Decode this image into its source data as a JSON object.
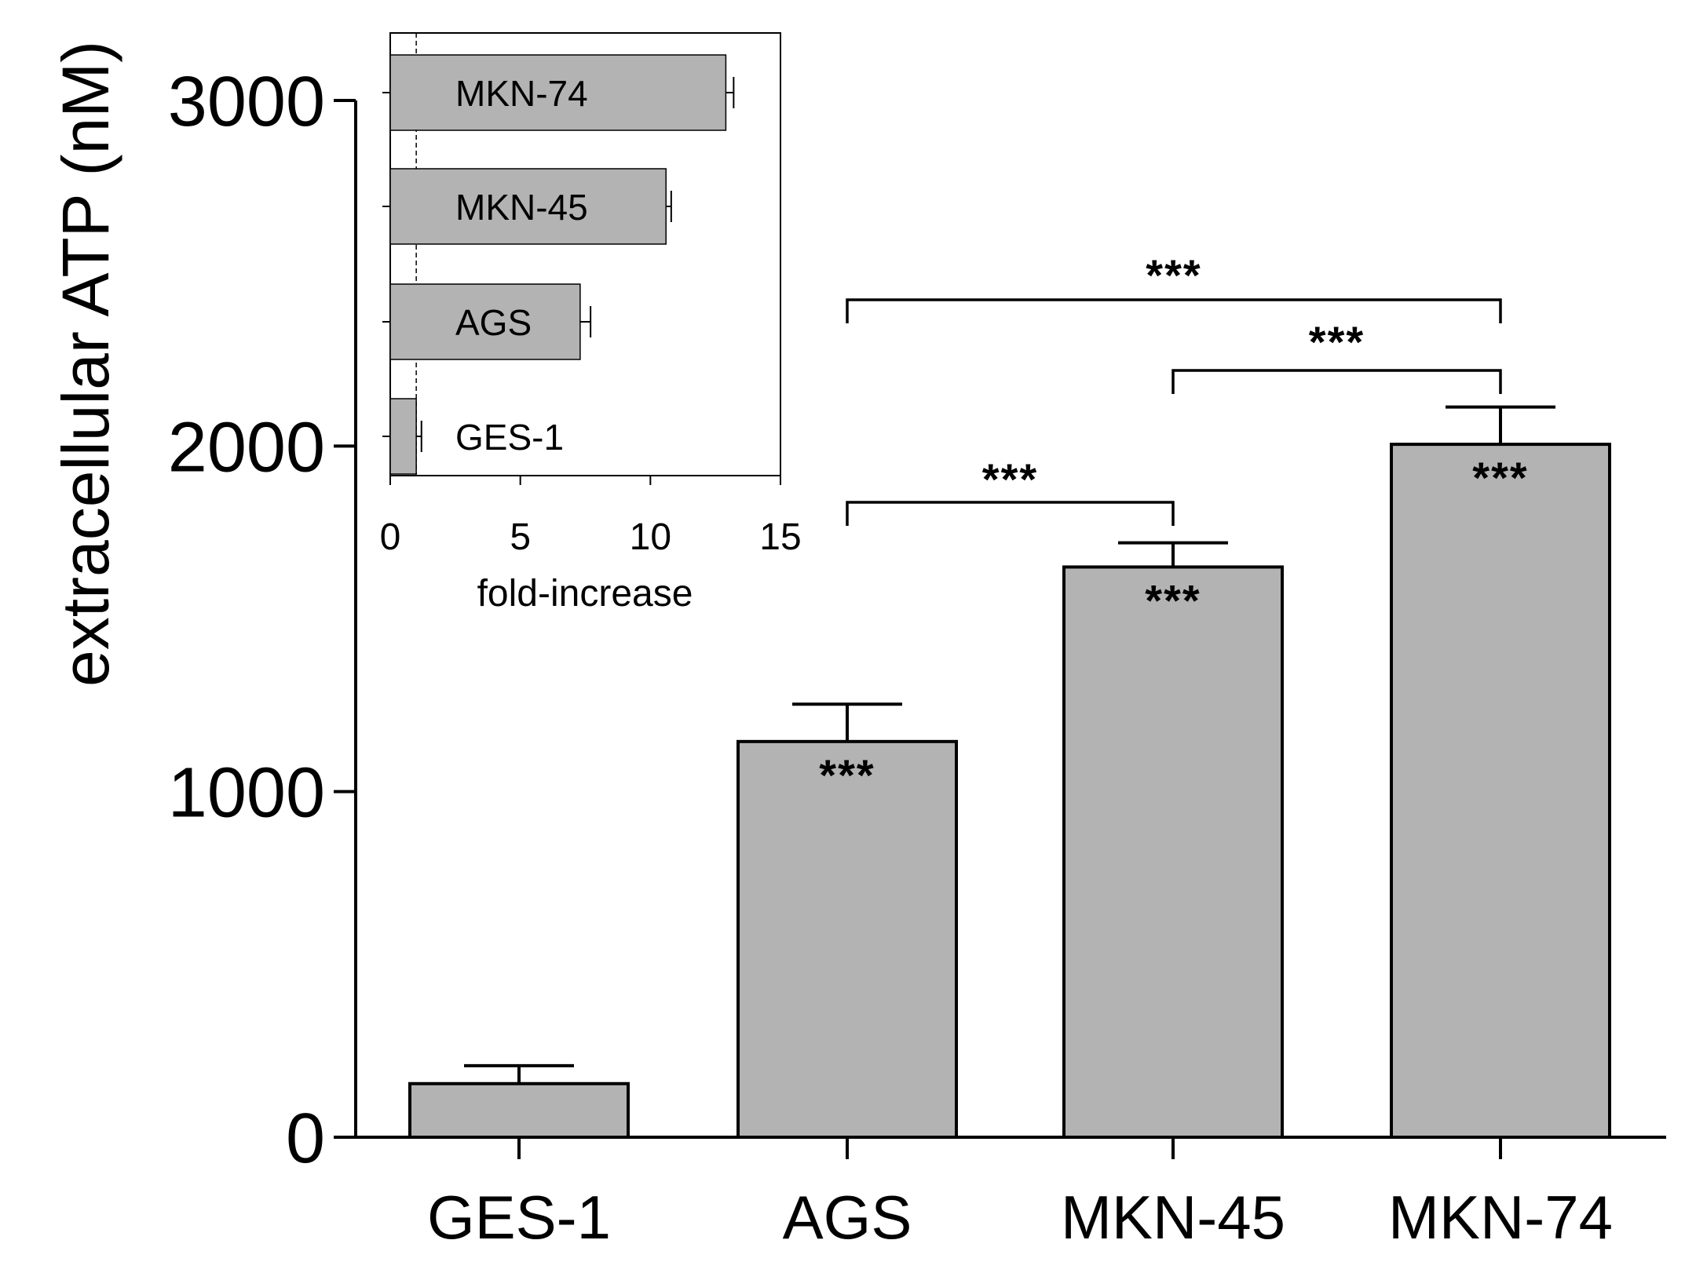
{
  "chart_data": [
    {
      "type": "bar",
      "ylabel": "extracellular ATP (nM)",
      "xlabel": "",
      "categories": [
        "GES-1",
        "AGS",
        "MKN-45",
        "MKN-74"
      ],
      "values": [
        155,
        1145,
        1650,
        2005
      ],
      "errors": [
        52,
        108,
        70,
        108
      ],
      "ylim": [
        0,
        3000
      ],
      "yticks": [
        0,
        1000,
        2000,
        3000
      ],
      "bar_annotations": [
        "",
        "***",
        "***",
        "***"
      ],
      "comparisons": [
        {
          "from": "AGS",
          "to": "MKN-45",
          "label": "***"
        },
        {
          "from": "AGS",
          "to": "MKN-74",
          "label": "***"
        },
        {
          "from": "MKN-45",
          "to": "MKN-74",
          "label": "***"
        }
      ],
      "bar_color": "#b3b3b3"
    },
    {
      "type": "bar",
      "orientation": "horizontal",
      "xlabel": "fold-increase",
      "categories": [
        "GES-1",
        "AGS",
        "MKN-45",
        "MKN-74"
      ],
      "values": [
        1.0,
        7.3,
        10.6,
        12.9
      ],
      "errors": [
        0.2,
        0.4,
        0.2,
        0.3
      ],
      "xlim": [
        0,
        15
      ],
      "xticks": [
        0,
        5,
        10,
        15
      ],
      "reference_line": 1,
      "bar_color": "#b3b3b3"
    }
  ]
}
